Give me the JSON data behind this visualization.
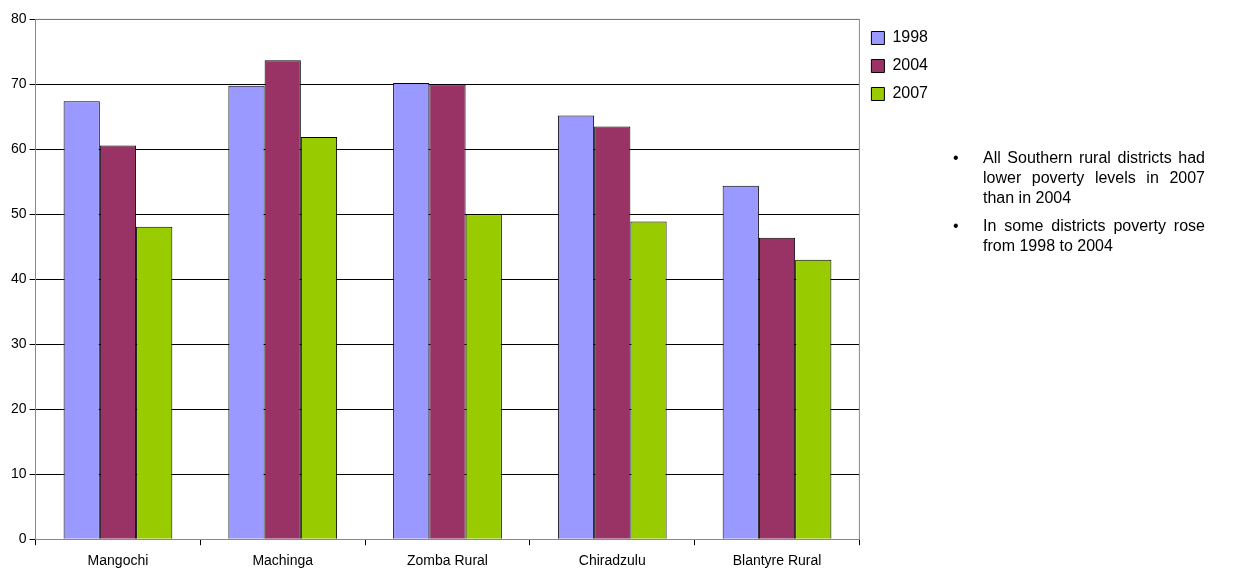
{
  "chart_data": {
    "type": "bar",
    "categories": [
      "Mangochi",
      "Machinga",
      "Zomba Rural",
      "Chiradzulu",
      "Blantyre Rural"
    ],
    "series": [
      {
        "name": "1998",
        "color": "#9999ff",
        "values": [
          67.4,
          69.8,
          70.2,
          65.2,
          54.4
        ]
      },
      {
        "name": "2004",
        "color": "#993366",
        "values": [
          60.6,
          73.7,
          70.0,
          63.5,
          46.4
        ]
      },
      {
        "name": "2007",
        "color": "#99cc00",
        "values": [
          48.1,
          61.9,
          50.0,
          48.9,
          43.0
        ]
      }
    ],
    "ylim": [
      0,
      80
    ],
    "yticks": [
      0,
      10,
      20,
      30,
      40,
      50,
      60,
      70,
      80
    ],
    "grid": "y",
    "legend": "top right",
    "annotations": [
      "• All Southern rural districts had lower poverty levels in 2007 than in 2004",
      "• In some districts poverty rose from 1998 to 2004"
    ]
  }
}
